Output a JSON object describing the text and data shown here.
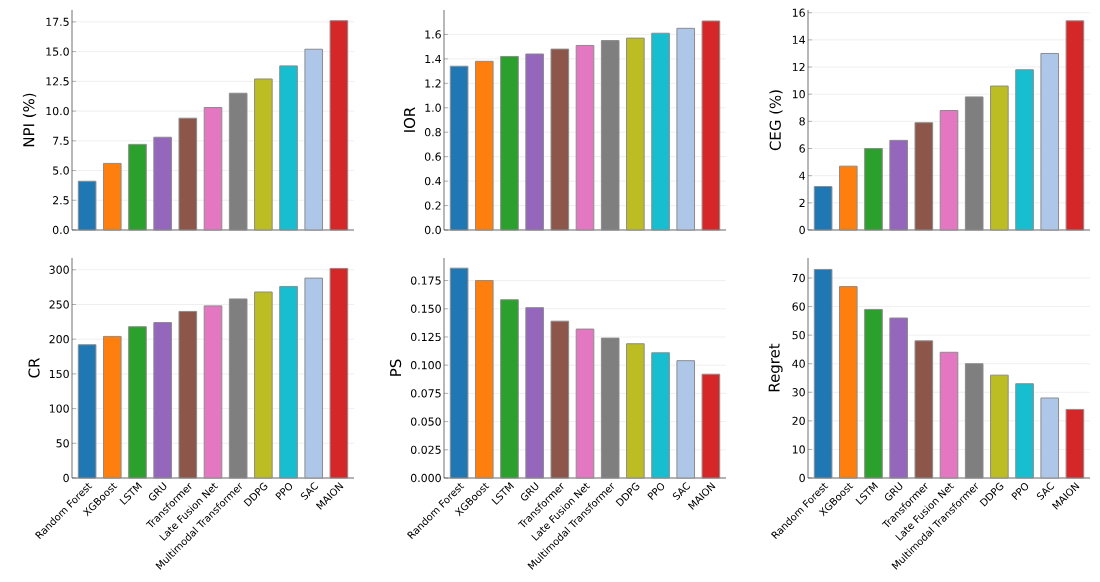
{
  "chart_data": [
    {
      "type": "bar",
      "ylabel": "NPI (%)",
      "categories": [
        null,
        null,
        null,
        null,
        null,
        null,
        null,
        null,
        null,
        null,
        null
      ],
      "values": [
        4.1,
        5.6,
        7.2,
        7.8,
        9.4,
        10.3,
        11.5,
        12.7,
        13.8,
        15.2,
        17.6
      ],
      "colors": [
        "#1f77b4",
        "#ff7f0e",
        "#2ca02c",
        "#9467bd",
        "#8c564b",
        "#e377c2",
        "#7f7f7f",
        "#bcbd22",
        "#17becf",
        "#aec7e8",
        "#d62728"
      ],
      "ylim": [
        0,
        18.5
      ],
      "yticks": [
        {
          "value": 0,
          "label": "0.0"
        },
        {
          "value": 2.5,
          "label": "2.5"
        },
        {
          "value": 5,
          "label": "5.0"
        },
        {
          "value": 7.5,
          "label": "7.5"
        },
        {
          "value": 10,
          "label": "10.0"
        },
        {
          "value": 12.5,
          "label": "12.5"
        },
        {
          "value": 15,
          "label": "15.0"
        },
        {
          "value": 17.5,
          "label": "17.5"
        }
      ],
      "grid": "y",
      "tick_labels": "y"
    },
    {
      "type": "bar",
      "ylabel": "IOR",
      "categories": [
        null,
        null,
        null,
        null,
        null,
        null,
        null,
        null,
        null,
        null,
        null
      ],
      "values": [
        1.34,
        1.38,
        1.42,
        1.44,
        1.48,
        1.51,
        1.55,
        1.57,
        1.61,
        1.65,
        1.71
      ],
      "colors": [
        "#1f77b4",
        "#ff7f0e",
        "#2ca02c",
        "#9467bd",
        "#8c564b",
        "#e377c2",
        "#7f7f7f",
        "#bcbd22",
        "#17becf",
        "#aec7e8",
        "#d62728"
      ],
      "ylim": [
        0,
        1.8
      ],
      "yticks": [
        {
          "value": 0,
          "label": "0.0"
        },
        {
          "value": 0.2,
          "label": "0.2"
        },
        {
          "value": 0.4,
          "label": "0.4"
        },
        {
          "value": 0.6,
          "label": "0.6"
        },
        {
          "value": 0.8,
          "label": "0.8"
        },
        {
          "value": 1,
          "label": "1.0"
        },
        {
          "value": 1.2,
          "label": "1.2"
        },
        {
          "value": 1.4,
          "label": "1.4"
        },
        {
          "value": 1.6,
          "label": "1.6"
        }
      ],
      "grid": "y",
      "tick_labels": "y"
    },
    {
      "type": "bar",
      "ylabel": "CEG (%)",
      "categories": [
        null,
        null,
        null,
        null,
        null,
        null,
        null,
        null,
        null,
        null,
        null
      ],
      "values": [
        3.2,
        4.7,
        6.0,
        6.6,
        7.9,
        8.8,
        9.8,
        10.6,
        11.8,
        13.0,
        15.4
      ],
      "colors": [
        "#1f77b4",
        "#ff7f0e",
        "#2ca02c",
        "#9467bd",
        "#8c564b",
        "#e377c2",
        "#7f7f7f",
        "#bcbd22",
        "#17becf",
        "#aec7e8",
        "#d62728"
      ],
      "ylim": [
        0,
        16.2
      ],
      "yticks": [
        0,
        2,
        4,
        6,
        8,
        10,
        12,
        14,
        16
      ],
      "grid": "y",
      "tick_labels": "y"
    },
    {
      "type": "bar",
      "ylabel": "CR",
      "categories": [
        "Random Forest",
        "XGBoost",
        "LSTM",
        "GRU",
        "Transformer",
        "Late Fusion Net",
        "Multimodal Transformer",
        "DDPG",
        "PPO",
        "SAC",
        "MAION"
      ],
      "values": [
        192,
        204,
        218,
        224,
        240,
        248,
        258,
        268,
        276,
        288,
        302
      ],
      "colors": [
        "#1f77b4",
        "#ff7f0e",
        "#2ca02c",
        "#9467bd",
        "#8c564b",
        "#e377c2",
        "#7f7f7f",
        "#bcbd22",
        "#17becf",
        "#aec7e8",
        "#d62728"
      ],
      "ylim": [
        0,
        317
      ],
      "yticks": [
        0,
        50,
        100,
        150,
        200,
        250,
        300
      ],
      "grid": "y"
    },
    {
      "type": "bar",
      "ylabel": "PS",
      "categories": [
        "Random Forest",
        "XGBoost",
        "LSTM",
        "GRU",
        "Transformer",
        "Late Fusion Net",
        "Multimodal Transformer",
        "DDPG",
        "PPO",
        "SAC",
        "MAION"
      ],
      "values": [
        0.186,
        0.175,
        0.158,
        0.151,
        0.139,
        0.132,
        0.124,
        0.119,
        0.111,
        0.104,
        0.092
      ],
      "colors": [
        "#1f77b4",
        "#ff7f0e",
        "#2ca02c",
        "#9467bd",
        "#8c564b",
        "#e377c2",
        "#7f7f7f",
        "#bcbd22",
        "#17becf",
        "#aec7e8",
        "#d62728"
      ],
      "ylim": [
        0,
        0.195
      ],
      "yticks": [
        {
          "value": 0,
          "label": "0.000"
        },
        {
          "value": 0.025,
          "label": "0.025"
        },
        {
          "value": 0.05,
          "label": "0.050"
        },
        {
          "value": 0.075,
          "label": "0.075"
        },
        {
          "value": 0.1,
          "label": "0.100"
        },
        {
          "value": 0.125,
          "label": "0.125"
        },
        {
          "value": 0.15,
          "label": "0.150"
        },
        {
          "value": 0.175,
          "label": "0.175"
        }
      ],
      "grid": "y"
    },
    {
      "type": "bar",
      "ylabel": "Regret",
      "categories": [
        "Random Forest",
        "XGBoost",
        "LSTM",
        "GRU",
        "Transformer",
        "Late Fusion Net",
        "Multimodal Transformer",
        "DDPG",
        "PPO",
        "SAC",
        "MAION"
      ],
      "values": [
        73,
        67,
        59,
        56,
        48,
        44,
        40,
        36,
        33,
        28,
        24
      ],
      "colors": [
        "#1f77b4",
        "#ff7f0e",
        "#2ca02c",
        "#9467bd",
        "#8c564b",
        "#e377c2",
        "#7f7f7f",
        "#bcbd22",
        "#17becf",
        "#aec7e8",
        "#d62728"
      ],
      "ylim": [
        0,
        77
      ],
      "yticks": [
        0,
        10,
        20,
        30,
        40,
        50,
        60,
        70
      ],
      "grid": "y"
    }
  ]
}
